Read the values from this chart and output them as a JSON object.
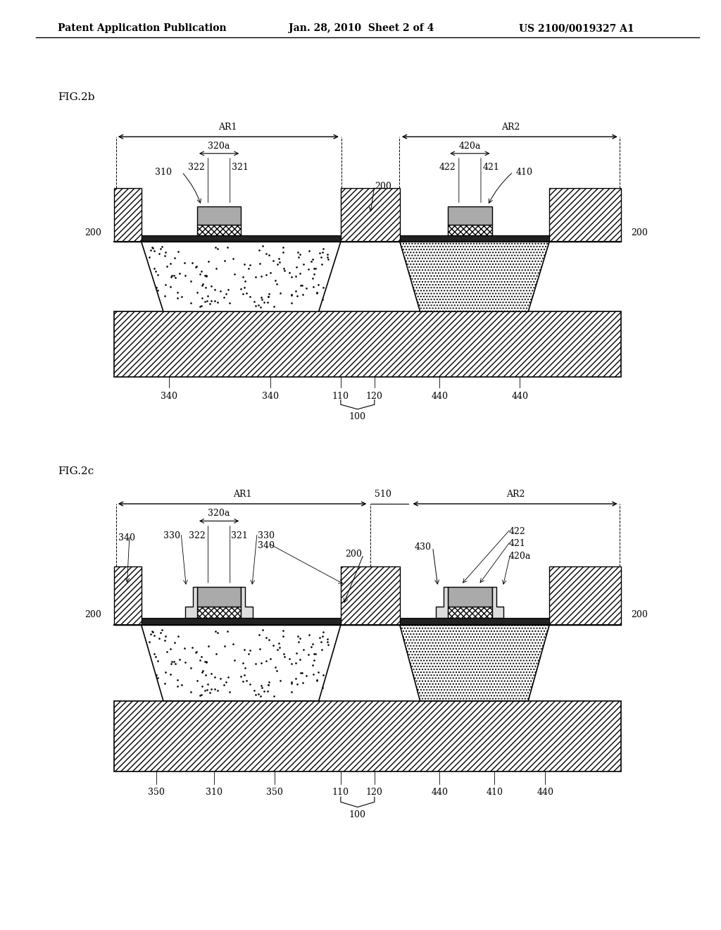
{
  "fig_width": 10.24,
  "fig_height": 13.2,
  "bg_color": "#ffffff",
  "header_text": "Patent Application Publication",
  "header_date": "Jan. 28, 2010  Sheet 2 of 4",
  "header_patent": "US 2100/0019327 A1",
  "fig2b_label": "FIG.2b",
  "fig2c_label": "FIG.2c"
}
